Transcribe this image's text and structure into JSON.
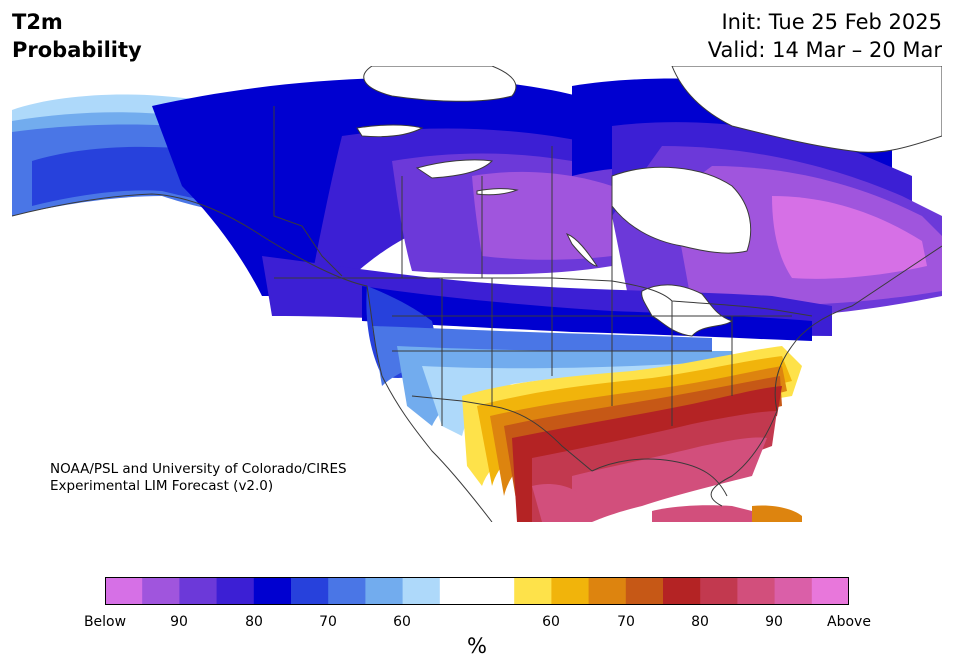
{
  "header": {
    "variable": "T2m",
    "product": "Probability",
    "init": "Init: Tue 25 Feb 2025",
    "valid": "Valid: 14 Mar – 20 Mar"
  },
  "credit": {
    "line1": "NOAA/PSL and University of Colorado/CIRES",
    "line2": "Experimental LIM Forecast (v2.0)"
  },
  "colorbar": {
    "unit": "%",
    "ticks": [
      "Below",
      "90",
      "80",
      "70",
      "60",
      "60",
      "70",
      "80",
      "90",
      "Above"
    ],
    "colors": [
      "#d670e6",
      "#a055dd",
      "#6c39d9",
      "#3c1fd4",
      "#0000d0",
      "#2741dc",
      "#4a76e6",
      "#72acee",
      "#aed9fa",
      "#ffffff",
      "#ffffff",
      "#fee24a",
      "#f1b40b",
      "#dd840f",
      "#c65816",
      "#b42324",
      "#c2394f",
      "#d24f7c",
      "#da5fa8",
      "#e877db"
    ]
  }
}
